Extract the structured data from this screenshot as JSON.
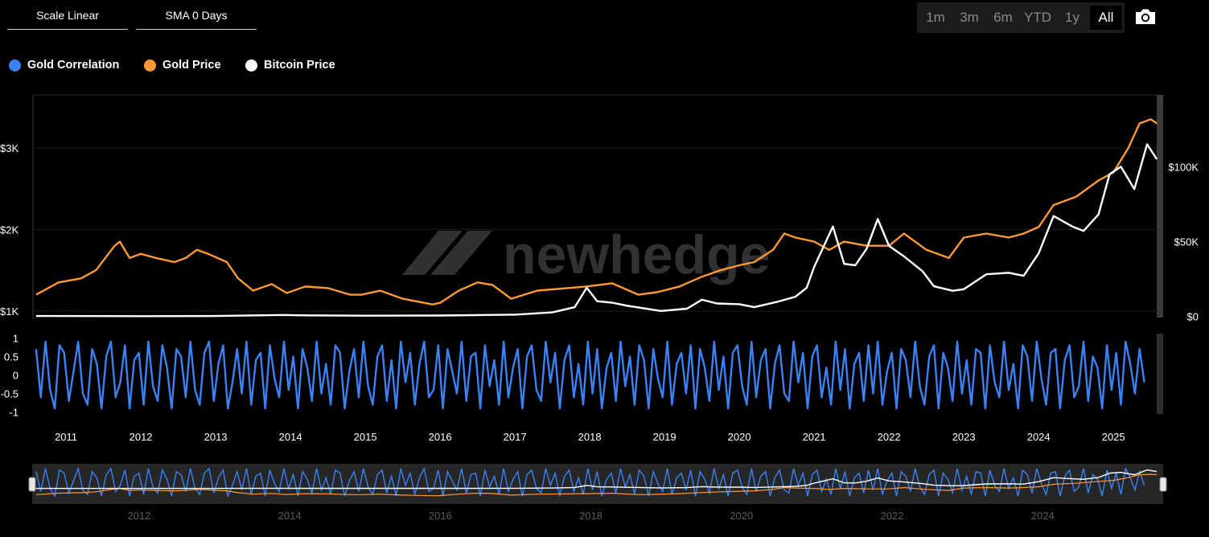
{
  "toolbar": {
    "scale_label": "Scale Linear",
    "sma_label": "SMA 0 Days",
    "ranges": [
      "1m",
      "3m",
      "6m",
      "YTD",
      "1y",
      "All"
    ],
    "active_range": "All"
  },
  "legend": [
    {
      "name": "Gold Correlation",
      "color": "#3b82f6"
    },
    {
      "name": "Gold Price",
      "color": "#ff9933"
    },
    {
      "name": "Bitcoin Price",
      "color": "#ffffff"
    }
  ],
  "watermark": "newhedge",
  "icons": {
    "camera": "camera-icon"
  },
  "chart_data": {
    "type": "line",
    "x_range": [
      2010.58,
      2025.6
    ],
    "x_ticks": [
      "2011",
      "2012",
      "2013",
      "2014",
      "2015",
      "2016",
      "2017",
      "2018",
      "2019",
      "2020",
      "2021",
      "2022",
      "2023",
      "2024",
      "2025"
    ],
    "left_axis": {
      "ticks": [
        "$1K",
        "$2K",
        "$3K"
      ],
      "tick_values": [
        1000,
        2000,
        3000
      ],
      "range": [
        900,
        3650
      ]
    },
    "right_axis": {
      "ticks": [
        "$0",
        "$50K",
        "$100K"
      ],
      "tick_values": [
        0,
        50000,
        100000
      ],
      "range": [
        -2000,
        148000
      ]
    },
    "correlation_axis": {
      "ticks": [
        "1",
        "0.5",
        "0",
        "-0.5",
        "-1"
      ],
      "tick_values": [
        1,
        0.5,
        0,
        -0.5,
        -1
      ],
      "range": [
        -1.05,
        1.05
      ]
    },
    "navigator_ticks": [
      "2012",
      "2014",
      "2016",
      "2018",
      "2020",
      "2022",
      "2024"
    ],
    "series": [
      {
        "name": "Gold Price",
        "axis": "left",
        "color": "#ff9933",
        "x": [
          2010.6,
          2010.9,
          2011.2,
          2011.4,
          2011.65,
          2011.72,
          2011.85,
          2012.0,
          2012.2,
          2012.45,
          2012.6,
          2012.75,
          2012.9,
          2013.15,
          2013.3,
          2013.5,
          2013.75,
          2013.95,
          2014.2,
          2014.5,
          2014.8,
          2014.95,
          2015.2,
          2015.5,
          2015.9,
          2016.0,
          2016.25,
          2016.5,
          2016.7,
          2016.95,
          2017.3,
          2017.7,
          2017.95,
          2018.3,
          2018.65,
          2018.9,
          2019.2,
          2019.5,
          2019.75,
          2020.0,
          2020.2,
          2020.45,
          2020.6,
          2020.75,
          2021.0,
          2021.2,
          2021.4,
          2021.7,
          2022.0,
          2022.2,
          2022.5,
          2022.8,
          2023.0,
          2023.3,
          2023.6,
          2023.8,
          2024.0,
          2024.2,
          2024.5,
          2024.8,
          2025.0,
          2025.2,
          2025.35,
          2025.5,
          2025.58
        ],
        "y": [
          1200,
          1350,
          1400,
          1500,
          1800,
          1850,
          1650,
          1700,
          1650,
          1600,
          1650,
          1750,
          1700,
          1600,
          1400,
          1250,
          1330,
          1220,
          1300,
          1280,
          1200,
          1200,
          1250,
          1150,
          1080,
          1100,
          1250,
          1350,
          1320,
          1150,
          1250,
          1280,
          1300,
          1340,
          1200,
          1230,
          1300,
          1420,
          1500,
          1560,
          1600,
          1750,
          1950,
          1900,
          1850,
          1750,
          1850,
          1800,
          1800,
          1950,
          1750,
          1650,
          1900,
          1950,
          1900,
          1950,
          2030,
          2300,
          2400,
          2600,
          2700,
          3000,
          3300,
          3350,
          3300
        ]
      },
      {
        "name": "Bitcoin Price",
        "axis": "right",
        "color": "#ffffff",
        "x": [
          2010.6,
          2012.0,
          2013.0,
          2013.9,
          2014.1,
          2015.0,
          2016.0,
          2017.0,
          2017.5,
          2017.8,
          2017.96,
          2018.1,
          2018.3,
          2018.5,
          2018.95,
          2019.3,
          2019.5,
          2019.7,
          2020.0,
          2020.2,
          2020.5,
          2020.75,
          2020.9,
          2021.0,
          2021.25,
          2021.4,
          2021.55,
          2021.7,
          2021.85,
          2022.0,
          2022.2,
          2022.45,
          2022.6,
          2022.85,
          2023.0,
          2023.3,
          2023.6,
          2023.8,
          2024.0,
          2024.2,
          2024.45,
          2024.6,
          2024.8,
          2024.95,
          2025.1,
          2025.28,
          2025.45,
          2025.58
        ],
        "y": [
          100,
          10,
          100,
          800,
          600,
          300,
          400,
          1000,
          2500,
          6000,
          19000,
          10000,
          9000,
          7000,
          3500,
          5000,
          11000,
          8500,
          8000,
          6000,
          9500,
          13000,
          19000,
          33000,
          60000,
          35000,
          34000,
          45000,
          65000,
          47000,
          40000,
          30000,
          20000,
          17000,
          18000,
          28000,
          29000,
          27000,
          42000,
          67000,
          60000,
          57000,
          68000,
          95000,
          100000,
          85000,
          115000,
          105000
        ]
      },
      {
        "name": "Gold Correlation",
        "axis": "correlation",
        "color": "#3b82f6",
        "x_start": 2010.6,
        "x_step": 0.0625,
        "y": [
          0.7,
          -0.6,
          0.9,
          -0.4,
          -0.9,
          0.8,
          0.6,
          -0.7,
          0.1,
          0.9,
          -0.5,
          -0.8,
          0.7,
          0.3,
          -0.9,
          0.5,
          0.9,
          -0.6,
          -0.2,
          0.8,
          -0.9,
          0.4,
          0.6,
          -0.8,
          0.9,
          -0.3,
          -0.7,
          0.8,
          0.2,
          -0.9,
          0.7,
          0.5,
          -0.6,
          0.9,
          -0.4,
          -0.8,
          0.6,
          0.9,
          -0.7,
          0.3,
          0.8,
          -0.9,
          -0.2,
          0.7,
          -0.5,
          0.9,
          -0.8,
          0.4,
          0.6,
          -0.9,
          0.8,
          -0.1,
          -0.6,
          0.9,
          -0.4,
          0.5,
          -0.9,
          0.7,
          0.2,
          -0.7,
          0.9,
          -0.5,
          0.3,
          -0.8,
          0.8,
          0.6,
          -0.9,
          0.1,
          0.7,
          -0.6,
          0.9,
          -0.3,
          -0.8,
          0.5,
          0.8,
          -0.7,
          0.4,
          -0.9,
          0.9,
          -0.2,
          0.6,
          -0.8,
          0.3,
          0.9,
          -0.6,
          -0.4,
          0.8,
          -0.9,
          0.7,
          0.1,
          -0.5,
          0.9,
          -0.7,
          0.5,
          0.6,
          -0.9,
          0.8,
          -0.3,
          0.4,
          -0.8,
          0.9,
          -0.6,
          0.2,
          0.7,
          -0.9,
          0.5,
          0.8,
          -0.4,
          -0.7,
          0.9,
          -0.2,
          0.6,
          -0.9,
          0.4,
          0.8,
          -0.6,
          0.3,
          -0.8,
          0.9,
          -0.5,
          0.7,
          -0.9,
          0.2,
          0.6,
          -0.7,
          0.9,
          -0.3,
          0.5,
          -0.8,
          0.8,
          0.4,
          -0.9,
          0.7,
          -0.1,
          -0.6,
          0.9,
          -0.8,
          0.3,
          0.6,
          -0.5,
          0.8,
          -0.9,
          0.7,
          0.2,
          -0.7,
          0.9,
          -0.4,
          0.5,
          -0.9,
          0.6,
          0.8,
          -0.3,
          -0.8,
          0.9,
          -0.6,
          0.4,
          0.7,
          -0.9,
          0.3,
          0.8,
          -0.5,
          -0.7,
          0.9,
          -0.2,
          0.6,
          -0.9,
          0.5,
          0.8,
          -0.6,
          0.2,
          -0.8,
          0.9,
          -0.4,
          0.7,
          -0.9,
          0.3,
          0.6,
          -0.7,
          0.8,
          -0.5,
          0.9,
          -0.8,
          0.1,
          0.6,
          -0.9,
          0.7,
          0.4,
          -0.6,
          0.9,
          -0.3,
          -0.8,
          0.5,
          0.8,
          -0.9,
          0.6,
          0.2,
          -0.7,
          0.9,
          -0.5,
          0.4,
          -0.8,
          0.7,
          0.6,
          -0.9,
          0.8,
          -0.2,
          -0.6,
          0.9,
          -0.4,
          0.3,
          -0.9,
          0.8,
          0.5,
          -0.7,
          0.9,
          -0.1,
          -0.8,
          0.6,
          0.7,
          -0.9,
          0.4,
          0.8,
          -0.6,
          -0.3,
          0.9,
          -0.7,
          0.5,
          0.2,
          -0.9,
          0.8,
          -0.4,
          0.6,
          -0.8,
          0.9,
          0.3,
          -0.5,
          0.7,
          -0.2
        ]
      }
    ]
  }
}
